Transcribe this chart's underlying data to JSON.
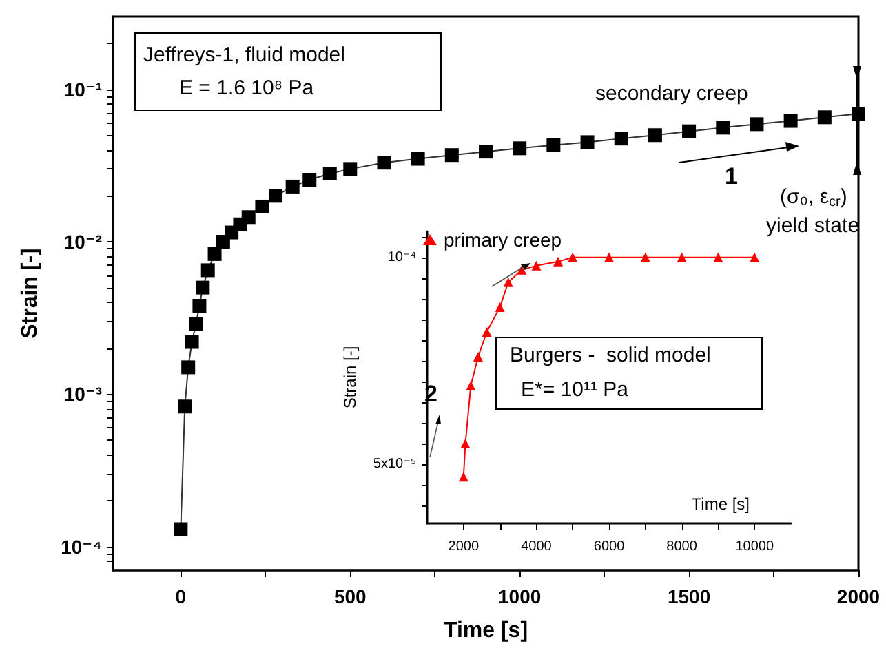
{
  "chart_data": [
    {
      "type": "line",
      "xlabel": "Time [s]",
      "ylabel": "Strain [-]",
      "log": "y",
      "marker": "square",
      "xlim": [
        -200,
        2000
      ],
      "xticks": [
        0,
        {
          "value": 250,
          "label": null
        },
        500,
        {
          "value": 750,
          "label": null
        },
        1000,
        {
          "value": 1250,
          "label": null
        },
        1500,
        {
          "value": 1750,
          "label": null
        },
        2000
      ],
      "ylim": [
        7e-05,
        0.3
      ],
      "yticks": [
        {
          "value": 8e-05,
          "label": null
        },
        {
          "value": 9e-05,
          "label": null
        },
        {
          "value": 0.0001,
          "label": "10⁻⁴"
        },
        {
          "value": 0.0002,
          "label": null
        },
        {
          "value": 0.0003,
          "label": null
        },
        {
          "value": 0.0004,
          "label": null
        },
        {
          "value": 0.0005,
          "label": null
        },
        {
          "value": 0.0006,
          "label": null
        },
        {
          "value": 0.0007,
          "label": null
        },
        {
          "value": 0.0008,
          "label": null
        },
        {
          "value": 0.0009,
          "label": null
        },
        {
          "value": 0.001,
          "label": "10⁻³"
        },
        {
          "value": 0.002,
          "label": null
        },
        {
          "value": 0.003,
          "label": null
        },
        {
          "value": 0.004,
          "label": null
        },
        {
          "value": 0.005,
          "label": null
        },
        {
          "value": 0.006,
          "label": null
        },
        {
          "value": 0.007,
          "label": null
        },
        {
          "value": 0.008,
          "label": null
        },
        {
          "value": 0.009,
          "label": null
        },
        {
          "value": 0.01,
          "label": "10⁻²"
        },
        {
          "value": 0.02,
          "label": null
        },
        {
          "value": 0.03,
          "label": null
        },
        {
          "value": 0.04,
          "label": null
        },
        {
          "value": 0.05,
          "label": null
        },
        {
          "value": 0.06,
          "label": null
        },
        {
          "value": 0.07,
          "label": null
        },
        {
          "value": 0.08,
          "label": null
        },
        {
          "value": 0.09,
          "label": null
        },
        {
          "value": 0.1,
          "label": "10⁻¹"
        },
        {
          "value": 0.2,
          "label": null
        }
      ],
      "x": [
        0,
        12,
        22,
        33,
        45,
        55,
        65,
        80,
        100,
        125,
        150,
        175,
        200,
        240,
        280,
        330,
        380,
        440,
        500,
        600,
        700,
        800,
        900,
        1000,
        1100,
        1200,
        1300,
        1400,
        1500,
        1600,
        1700,
        1800,
        1900,
        2000
      ],
      "series": [
        {
          "color": "#000000",
          "values": [
            0.00013,
            0.00083,
            0.0015,
            0.0022,
            0.0029,
            0.0038,
            0.005,
            0.0065,
            0.0083,
            0.01,
            0.0115,
            0.013,
            0.0145,
            0.017,
            0.02,
            0.023,
            0.0255,
            0.028,
            0.03,
            0.033,
            0.035,
            0.037,
            0.039,
            0.041,
            0.043,
            0.045,
            0.0475,
            0.05,
            0.053,
            0.056,
            0.059,
            0.062,
            0.0655,
            0.069
          ]
        }
      ],
      "annotations": [
        "Jeffreys-1, fluid model",
        "E = 1.6 10⁸ Pa",
        "secondary creep",
        "1",
        "(σ₀, ε$_{cr}$)",
        "yield state"
      ]
    },
    {
      "type": "line",
      "xlabel": "Time [s]",
      "ylabel": "Strain [-]",
      "marker": "triangle",
      "legend": "top left",
      "xlim": [
        1000,
        11000
      ],
      "xticks": [
        2000,
        {
          "value": 3000,
          "label": null
        },
        4000,
        {
          "value": 5000,
          "label": null
        },
        6000,
        {
          "value": 7000,
          "label": null
        },
        8000,
        {
          "value": 9000,
          "label": null
        },
        10000
      ],
      "ylim": [
        3.57e-05,
        0.0001063
      ],
      "yticks": [
        {
          "value": 4e-05,
          "label": null
        },
        {
          "value": 4.5e-05,
          "label": null
        },
        {
          "value": 5e-05,
          "label": "5x10⁻⁵"
        },
        {
          "value": 5.5e-05,
          "label": null
        },
        {
          "value": 6e-05,
          "label": null
        },
        {
          "value": 6.5e-05,
          "label": null
        },
        {
          "value": 7e-05,
          "label": null
        },
        {
          "value": 7.5e-05,
          "label": null
        },
        {
          "value": 8e-05,
          "label": null
        },
        {
          "value": 8.5e-05,
          "label": null
        },
        {
          "value": 9e-05,
          "label": null
        },
        {
          "value": 9.5e-05,
          "label": null
        },
        {
          "value": 0.0001,
          "label": "10⁻⁴"
        },
        {
          "value": 0.000105,
          "label": null
        }
      ],
      "x": [
        2000,
        2050,
        2200,
        2400,
        2640,
        3000,
        3230,
        3600,
        4000,
        4600,
        5000,
        6000,
        7000,
        8000,
        9000,
        10000
      ],
      "series": [
        {
          "name": "primary creep",
          "color": "#ff0000",
          "values": [
            4.7e-05,
            5.5e-05,
            6.9e-05,
            7.6e-05,
            8.2e-05,
            8.8e-05,
            9.4e-05,
            9.7e-05,
            9.8e-05,
            9.9e-05,
            0.0001,
            0.0001,
            0.0001,
            0.0001,
            0.0001,
            0.0001
          ]
        }
      ],
      "annotations": [
        "Burgers -  solid model",
        "E*= 10¹¹ Pa",
        "2"
      ]
    }
  ]
}
